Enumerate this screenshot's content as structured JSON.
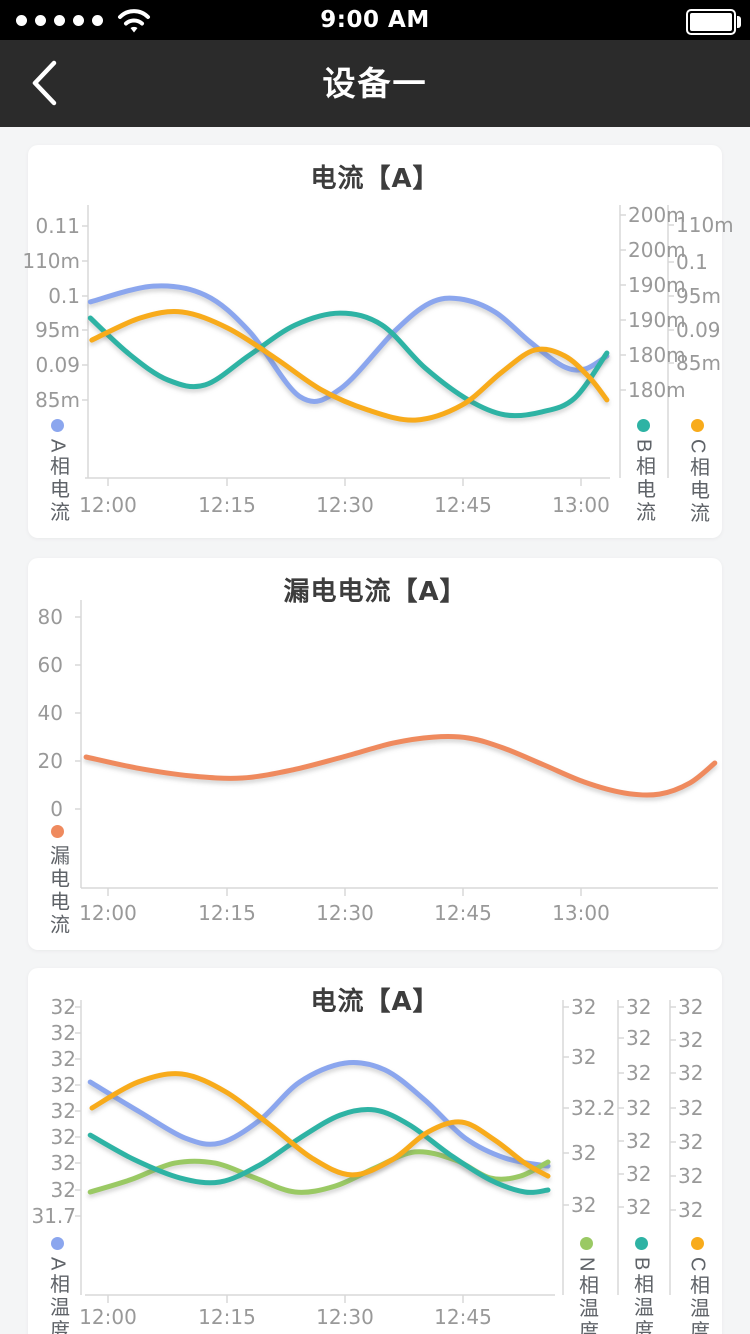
{
  "status_bar": {
    "time": "9:00 AM",
    "signal_dots": 5
  },
  "nav_bar": {
    "title": "设备一"
  },
  "colors": {
    "blue": "#8ba6ee",
    "teal": "#2eb3a4",
    "gold": "#f8ab1b",
    "salmon": "#ef8a5e",
    "green": "#9ac964",
    "axis_label": "#999999",
    "axis_line": "#d8d8d8",
    "title_text": "#3d3d3d",
    "legend_text": "#5f6368",
    "status_bar_bg": "#000000",
    "nav_bar_bg": "#2b2b2b",
    "card_bg": "#ffffff"
  },
  "chart_data": [
    {
      "type": "line",
      "title": "电流【A】",
      "x_start": "12:00",
      "x_step_min": 5,
      "x_tick_labels": [
        "12:00",
        "12:15",
        "12:30",
        "12:45",
        "13:00"
      ],
      "y_axes": [
        {
          "position": "left",
          "tick_labels": [
            "0.11",
            "110m",
            "0.1",
            "95m",
            "0.09",
            "85m"
          ],
          "approx_range": [
            0.085,
            0.11
          ]
        },
        {
          "position": "right",
          "tick_labels": [
            "200m",
            "200m",
            "190m",
            "190m",
            "180m",
            "180m"
          ],
          "approx_range": [
            0.175,
            0.2
          ]
        },
        {
          "position": "right",
          "tick_labels": [
            "110m",
            "0.1",
            "95m",
            "0.09",
            "85m"
          ],
          "approx_range": [
            0.085,
            0.11
          ]
        }
      ],
      "series": [
        {
          "name": "A相电流",
          "color": "#8ba6ee",
          "axis": 0,
          "approx_values": [
            0.099,
            0.101,
            0.1,
            0.095,
            0.086,
            0.087,
            0.095,
            0.099,
            0.1,
            0.098,
            0.093,
            0.09,
            0.089,
            0.091
          ],
          "points": [
            [
              0.01,
              0.645
            ],
            [
              0.13,
              0.703
            ],
            [
              0.229,
              0.67
            ],
            [
              0.314,
              0.535
            ],
            [
              0.41,
              0.297
            ],
            [
              0.486,
              0.326
            ],
            [
              0.59,
              0.538
            ],
            [
              0.657,
              0.641
            ],
            [
              0.714,
              0.656
            ],
            [
              0.781,
              0.608
            ],
            [
              0.848,
              0.498
            ],
            [
              0.91,
              0.41
            ],
            [
              0.952,
              0.399
            ],
            [
              0.994,
              0.447
            ]
          ]
        },
        {
          "name": "B相电流",
          "color": "#2eb3a4",
          "axis": 1,
          "approx_values": [
            0.185,
            0.18,
            0.176,
            0.176,
            0.18,
            0.185,
            0.186,
            0.184,
            0.178,
            0.173,
            0.171,
            0.172,
            0.174,
            0.18
          ],
          "points": [
            [
              0.01,
              0.586
            ],
            [
              0.086,
              0.451
            ],
            [
              0.158,
              0.359
            ],
            [
              0.229,
              0.341
            ],
            [
              0.314,
              0.451
            ],
            [
              0.4,
              0.56
            ],
            [
              0.486,
              0.604
            ],
            [
              0.566,
              0.56
            ],
            [
              0.648,
              0.403
            ],
            [
              0.73,
              0.286
            ],
            [
              0.8,
              0.231
            ],
            [
              0.87,
              0.242
            ],
            [
              0.933,
              0.293
            ],
            [
              0.994,
              0.458
            ]
          ]
        },
        {
          "name": "C相电流",
          "color": "#f8ab1b",
          "axis": 2,
          "approx_values": [
            0.089,
            0.093,
            0.094,
            0.091,
            0.086,
            0.081,
            0.078,
            0.076,
            0.079,
            0.084,
            0.088,
            0.087,
            0.083,
            0.079
          ],
          "points": [
            [
              0.013,
              0.505
            ],
            [
              0.105,
              0.586
            ],
            [
              0.185,
              0.608
            ],
            [
              0.272,
              0.549
            ],
            [
              0.362,
              0.44
            ],
            [
              0.451,
              0.322
            ],
            [
              0.539,
              0.249
            ],
            [
              0.629,
              0.212
            ],
            [
              0.718,
              0.267
            ],
            [
              0.794,
              0.388
            ],
            [
              0.857,
              0.469
            ],
            [
              0.914,
              0.447
            ],
            [
              0.962,
              0.366
            ],
            [
              0.994,
              0.286
            ]
          ]
        }
      ]
    },
    {
      "type": "line",
      "title": "漏电电流【A】",
      "x_start": "12:00",
      "x_step_min": 5,
      "x_tick_labels": [
        "12:00",
        "12:15",
        "12:30",
        "12:45",
        "13:00"
      ],
      "y_axes": [
        {
          "position": "left",
          "tick_labels": [
            "80",
            "60",
            "40",
            "20",
            "0"
          ],
          "approx_range": [
            0,
            80
          ]
        }
      ],
      "series": [
        {
          "name": "漏电电流",
          "color": "#ef8a5e",
          "axis": 0,
          "approx_values": [
            22,
            17,
            14,
            13,
            16,
            22,
            28,
            30,
            30,
            25,
            18,
            11,
            7,
            6,
            11,
            19
          ],
          "points": [
            [
              0.008,
              0.455
            ],
            [
              0.087,
              0.417
            ],
            [
              0.174,
              0.389
            ],
            [
              0.253,
              0.382
            ],
            [
              0.332,
              0.41
            ],
            [
              0.411,
              0.455
            ],
            [
              0.49,
              0.503
            ],
            [
              0.553,
              0.524
            ],
            [
              0.608,
              0.521
            ],
            [
              0.663,
              0.486
            ],
            [
              0.727,
              0.427
            ],
            [
              0.79,
              0.368
            ],
            [
              0.853,
              0.33
            ],
            [
              0.908,
              0.326
            ],
            [
              0.956,
              0.365
            ],
            [
              0.995,
              0.434
            ]
          ]
        }
      ]
    },
    {
      "type": "line",
      "title": "电流【A】",
      "x_start": "12:00",
      "x_step_min": 5,
      "x_tick_labels": [
        "12:00",
        "12:15",
        "12:30",
        "12:45"
      ],
      "y_axes": [
        {
          "position": "left",
          "tick_labels": [
            "32",
            "32",
            "32",
            "32",
            "32",
            "32",
            "32",
            "32",
            "31.7"
          ],
          "approx_range": [
            31.7,
            32
          ]
        },
        {
          "position": "right",
          "tick_labels": [
            "32",
            "32",
            "32.2",
            "32",
            "32"
          ],
          "approx_range": [
            31.8,
            32.2
          ]
        },
        {
          "position": "right",
          "tick_labels": [
            "32",
            "32",
            "32",
            "32",
            "32",
            "32",
            "32"
          ],
          "approx_range": [
            31.8,
            32
          ]
        },
        {
          "position": "right",
          "tick_labels": [
            "32",
            "32",
            "32",
            "32",
            "32",
            "32",
            "32"
          ],
          "approx_range": [
            31.8,
            32
          ]
        }
      ],
      "series": [
        {
          "name": "A相温度",
          "color": "#8ba6ee",
          "axis": 0,
          "approx_values": [
            32,
            31.9,
            31.9,
            31.9,
            31.9,
            32,
            32,
            32,
            31.9,
            31.9,
            31.9,
            31.9
          ],
          "points": [
            [
              0.011,
              0.722
            ],
            [
              0.117,
              0.62
            ],
            [
              0.213,
              0.532
            ],
            [
              0.287,
              0.515
            ],
            [
              0.372,
              0.593
            ],
            [
              0.457,
              0.722
            ],
            [
              0.553,
              0.786
            ],
            [
              0.638,
              0.763
            ],
            [
              0.723,
              0.661
            ],
            [
              0.809,
              0.532
            ],
            [
              0.894,
              0.464
            ],
            [
              0.985,
              0.437
            ]
          ]
        },
        {
          "name": "N相温度",
          "color": "#9ac964",
          "axis": 1,
          "approx_values": [
            31.8,
            31.8,
            31.9,
            31.9,
            31.8,
            31.8,
            31.8,
            31.9,
            31.9,
            31.9,
            31.8,
            31.8,
            31.9
          ],
          "points": [
            [
              0.011,
              0.349
            ],
            [
              0.096,
              0.39
            ],
            [
              0.191,
              0.447
            ],
            [
              0.277,
              0.447
            ],
            [
              0.362,
              0.397
            ],
            [
              0.447,
              0.349
            ],
            [
              0.532,
              0.369
            ],
            [
              0.617,
              0.431
            ],
            [
              0.702,
              0.485
            ],
            [
              0.787,
              0.458
            ],
            [
              0.862,
              0.397
            ],
            [
              0.926,
              0.403
            ],
            [
              0.985,
              0.451
            ]
          ]
        },
        {
          "name": "B相温度",
          "color": "#2eb3a4",
          "axis": 2,
          "approx_values": [
            31.9,
            31.9,
            31.8,
            31.8,
            31.9,
            31.9,
            31.9,
            32,
            31.9,
            31.9,
            31.8,
            31.8,
            31.8
          ],
          "points": [
            [
              0.011,
              0.542
            ],
            [
              0.106,
              0.458
            ],
            [
              0.202,
              0.397
            ],
            [
              0.287,
              0.383
            ],
            [
              0.372,
              0.441
            ],
            [
              0.457,
              0.532
            ],
            [
              0.543,
              0.61
            ],
            [
              0.617,
              0.627
            ],
            [
              0.691,
              0.576
            ],
            [
              0.777,
              0.475
            ],
            [
              0.862,
              0.39
            ],
            [
              0.936,
              0.349
            ],
            [
              0.985,
              0.356
            ]
          ]
        },
        {
          "name": "C相温度",
          "color": "#f8ab1b",
          "axis": 3,
          "approx_values": [
            32,
            32,
            32,
            32,
            31.9,
            31.8,
            31.8,
            31.9,
            31.9,
            31.9,
            31.9,
            31.8,
            31.8
          ],
          "points": [
            [
              0.015,
              0.634
            ],
            [
              0.113,
              0.722
            ],
            [
              0.206,
              0.749
            ],
            [
              0.3,
              0.688
            ],
            [
              0.394,
              0.576
            ],
            [
              0.483,
              0.464
            ],
            [
              0.568,
              0.407
            ],
            [
              0.653,
              0.458
            ],
            [
              0.73,
              0.553
            ],
            [
              0.802,
              0.586
            ],
            [
              0.872,
              0.525
            ],
            [
              0.936,
              0.447
            ],
            [
              0.985,
              0.403
            ]
          ]
        }
      ]
    }
  ]
}
